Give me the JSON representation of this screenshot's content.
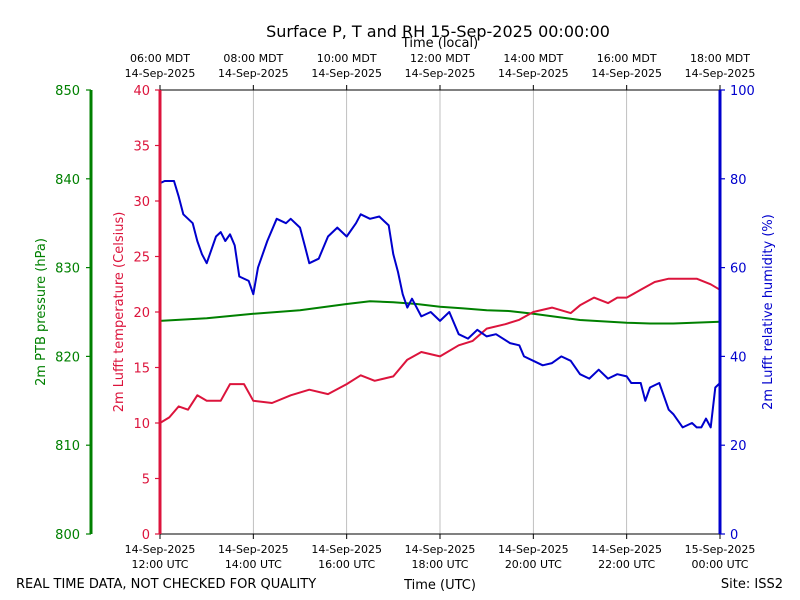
{
  "chart_data": {
    "type": "line",
    "title": "Surface P, T and RH 15-Sep-2025 00:00:00",
    "top_axis_label": "Time (local)",
    "xlabel": "Time (UTC)",
    "x_range_utc_hours": [
      12,
      24
    ],
    "top_ticks": [
      {
        "hour": 12,
        "line1": "06:00 MDT",
        "line2": "14-Sep-2025"
      },
      {
        "hour": 14,
        "line1": "08:00 MDT",
        "line2": "14-Sep-2025"
      },
      {
        "hour": 16,
        "line1": "10:00 MDT",
        "line2": "14-Sep-2025"
      },
      {
        "hour": 18,
        "line1": "12:00 MDT",
        "line2": "14-Sep-2025"
      },
      {
        "hour": 20,
        "line1": "14:00 MDT",
        "line2": "14-Sep-2025"
      },
      {
        "hour": 22,
        "line1": "16:00 MDT",
        "line2": "14-Sep-2025"
      },
      {
        "hour": 24,
        "line1": "18:00 MDT",
        "line2": "14-Sep-2025"
      }
    ],
    "bottom_ticks": [
      {
        "hour": 12,
        "line1": "14-Sep-2025",
        "line2": "12:00 UTC"
      },
      {
        "hour": 14,
        "line1": "14-Sep-2025",
        "line2": "14:00 UTC"
      },
      {
        "hour": 16,
        "line1": "14-Sep-2025",
        "line2": "16:00 UTC"
      },
      {
        "hour": 18,
        "line1": "14-Sep-2025",
        "line2": "18:00 UTC"
      },
      {
        "hour": 20,
        "line1": "14-Sep-2025",
        "line2": "20:00 UTC"
      },
      {
        "hour": 22,
        "line1": "14-Sep-2025",
        "line2": "22:00 UTC"
      },
      {
        "hour": 24,
        "line1": "15-Sep-2025",
        "line2": "00:00 UTC"
      }
    ],
    "axes": {
      "pressure": {
        "label": "2m PTB pressure (hPa)",
        "ylim": [
          800,
          850
        ],
        "ticks": [
          800,
          810,
          820,
          830,
          840,
          850
        ],
        "color": "#008000"
      },
      "temperature": {
        "label": "2m Lufft temperature (Celsius)",
        "ylim": [
          0,
          40
        ],
        "ticks": [
          0,
          5,
          10,
          15,
          20,
          25,
          30,
          35,
          40
        ],
        "color": "#dc143c"
      },
      "humidity": {
        "label": "2m Lufft relative humidity (%)",
        "ylim": [
          0,
          100
        ],
        "ticks": [
          0,
          20,
          40,
          60,
          80,
          100
        ],
        "color": "#0000cd"
      }
    },
    "series": [
      {
        "name": "2m PTB pressure (hPa)",
        "axis": "pressure",
        "color": "#008000",
        "x": [
          12.0,
          13.0,
          14.0,
          15.0,
          16.0,
          16.5,
          17.0,
          17.5,
          18.0,
          18.5,
          19.0,
          19.5,
          20.0,
          21.0,
          22.0,
          22.5,
          23.0,
          24.0
        ],
        "y": [
          824.0,
          824.3,
          824.8,
          825.2,
          825.9,
          826.2,
          826.1,
          825.9,
          825.6,
          825.4,
          825.2,
          825.1,
          824.8,
          824.1,
          823.8,
          823.7,
          823.7,
          823.9
        ]
      },
      {
        "name": "2m Lufft temperature (Celsius)",
        "axis": "temperature",
        "color": "#dc143c",
        "x": [
          12.0,
          12.2,
          12.4,
          12.6,
          12.8,
          13.0,
          13.3,
          13.5,
          13.8,
          14.0,
          14.4,
          14.8,
          15.2,
          15.6,
          16.0,
          16.3,
          16.6,
          17.0,
          17.3,
          17.6,
          18.0,
          18.4,
          18.7,
          19.0,
          19.4,
          19.7,
          20.0,
          20.4,
          20.8,
          21.0,
          21.3,
          21.6,
          21.8,
          22.0,
          22.3,
          22.6,
          22.9,
          23.2,
          23.5,
          23.8,
          24.0
        ],
        "y": [
          10.0,
          10.5,
          11.5,
          11.2,
          12.5,
          12.0,
          12.0,
          13.5,
          13.5,
          12.0,
          11.8,
          12.5,
          13.0,
          12.6,
          13.5,
          14.3,
          13.8,
          14.2,
          15.7,
          16.4,
          16.0,
          17.0,
          17.4,
          18.5,
          18.9,
          19.3,
          20.0,
          20.4,
          19.9,
          20.6,
          21.3,
          20.8,
          21.3,
          21.3,
          22.0,
          22.7,
          23.0,
          23.0,
          23.0,
          22.5,
          22.0
        ]
      },
      {
        "name": "2m Lufft relative humidity (%)",
        "axis": "humidity",
        "color": "#0000cd",
        "x": [
          12.0,
          12.1,
          12.3,
          12.4,
          12.5,
          12.7,
          12.8,
          12.9,
          13.0,
          13.2,
          13.3,
          13.4,
          13.5,
          13.6,
          13.7,
          13.9,
          14.0,
          14.1,
          14.3,
          14.5,
          14.7,
          14.8,
          15.0,
          15.1,
          15.2,
          15.4,
          15.6,
          15.8,
          16.0,
          16.2,
          16.3,
          16.5,
          16.7,
          16.8,
          16.9,
          17.0,
          17.1,
          17.2,
          17.3,
          17.4,
          17.6,
          17.8,
          18.0,
          18.2,
          18.4,
          18.6,
          18.8,
          19.0,
          19.2,
          19.5,
          19.7,
          19.8,
          20.0,
          20.2,
          20.4,
          20.6,
          20.8,
          21.0,
          21.2,
          21.4,
          21.6,
          21.8,
          22.0,
          22.1,
          22.3,
          22.4,
          22.5,
          22.7,
          22.9,
          23.0,
          23.2,
          23.4,
          23.5,
          23.6,
          23.7,
          23.8,
          23.9,
          24.0
        ],
        "y": [
          79.0,
          79.5,
          79.5,
          76.0,
          72.0,
          70.0,
          66.0,
          63.0,
          61.0,
          67.0,
          68.0,
          66.0,
          67.5,
          65.0,
          58.0,
          57.0,
          54.0,
          60.0,
          66.0,
          71.0,
          70.0,
          71.0,
          69.0,
          65.0,
          61.0,
          62.0,
          67.0,
          69.0,
          67.0,
          70.0,
          72.0,
          71.0,
          71.5,
          70.5,
          69.5,
          63.0,
          59.0,
          54.0,
          51.0,
          53.0,
          49.0,
          50.0,
          48.0,
          50.0,
          45.0,
          44.0,
          46.0,
          44.5,
          45.0,
          43.0,
          42.5,
          40.0,
          39.0,
          38.0,
          38.5,
          40.0,
          39.0,
          36.0,
          35.0,
          37.0,
          35.0,
          36.0,
          35.5,
          34.0,
          34.0,
          30.0,
          33.0,
          34.0,
          28.0,
          27.0,
          24.0,
          25.0,
          24.0,
          24.0,
          26.0,
          24.0,
          33.0,
          34.0
        ]
      }
    ]
  },
  "footer": {
    "disclaimer": "REAL TIME DATA, NOT CHECKED FOR QUALITY",
    "site": "Site: ISS2"
  }
}
